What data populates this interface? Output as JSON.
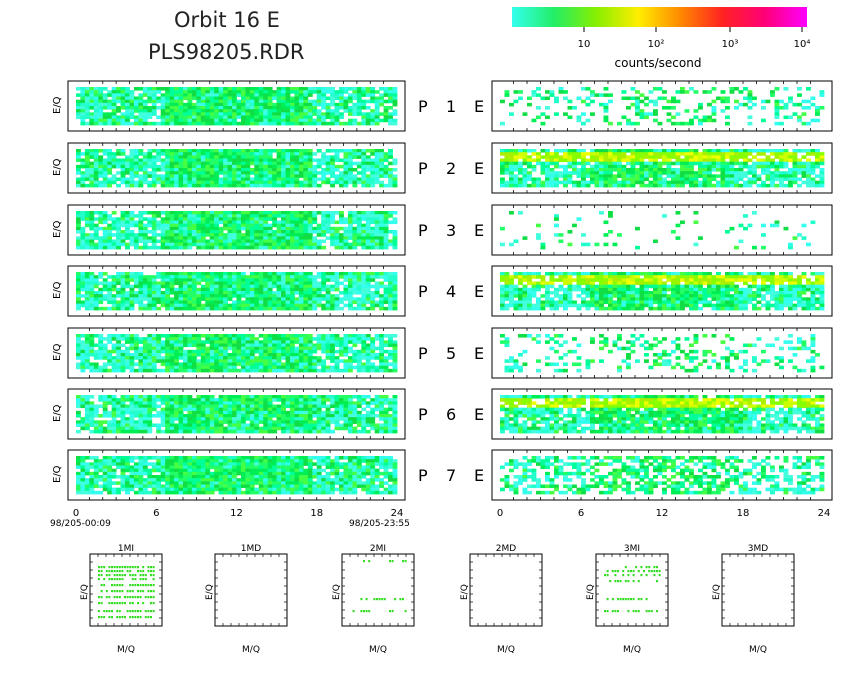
{
  "header": {
    "title": "Orbit 16 E",
    "subtitle": "PLS98205.RDR"
  },
  "colorbar": {
    "label": "counts/second",
    "ticks": [
      "10",
      "10²",
      "10³",
      "10⁴"
    ],
    "gradient": [
      "#33ffee",
      "#22ee66",
      "#88ee00",
      "#ffee00",
      "#ff8800",
      "#ff2222",
      "#ff0077",
      "#ff00ff"
    ]
  },
  "time_axis": {
    "ticks": [
      "0",
      "6",
      "12",
      "18",
      "24"
    ],
    "start_label": "98/205-00:09",
    "end_label": "98/205-23:55"
  },
  "y_label": "E/Q",
  "chart_data": {
    "type": "heatmap",
    "x_unit": "hours",
    "xlim": [
      0,
      24
    ],
    "panels": [
      {
        "label": "P 1 E",
        "left": "moderate",
        "right": "sparse"
      },
      {
        "label": "P 2 E",
        "left": "moderate",
        "right": "strong band"
      },
      {
        "label": "P 3 E",
        "left": "moderate",
        "right": "very sparse"
      },
      {
        "label": "P 4 E",
        "left": "moderate",
        "right": "strong band"
      },
      {
        "label": "P 5 E",
        "left": "moderate",
        "right": "sparse"
      },
      {
        "label": "P 6 E",
        "left": "moderate",
        "right": "strong band"
      },
      {
        "label": "P 7 E",
        "left": "moderate",
        "right": "medium"
      }
    ],
    "mass_panels": [
      {
        "label": "1MI",
        "x_label": "M/Q",
        "y_label": "E/Q",
        "filled": true
      },
      {
        "label": "1MD",
        "x_label": "M/Q",
        "y_label": "E/Q",
        "filled": false
      },
      {
        "label": "2MI",
        "x_label": "M/Q",
        "y_label": "E/Q",
        "filled": true
      },
      {
        "label": "2MD",
        "x_label": "M/Q",
        "y_label": "E/Q",
        "filled": false
      },
      {
        "label": "3MI",
        "x_label": "M/Q",
        "y_label": "E/Q",
        "filled": true
      },
      {
        "label": "3MD",
        "x_label": "M/Q",
        "y_label": "E/Q",
        "filled": false
      }
    ]
  }
}
